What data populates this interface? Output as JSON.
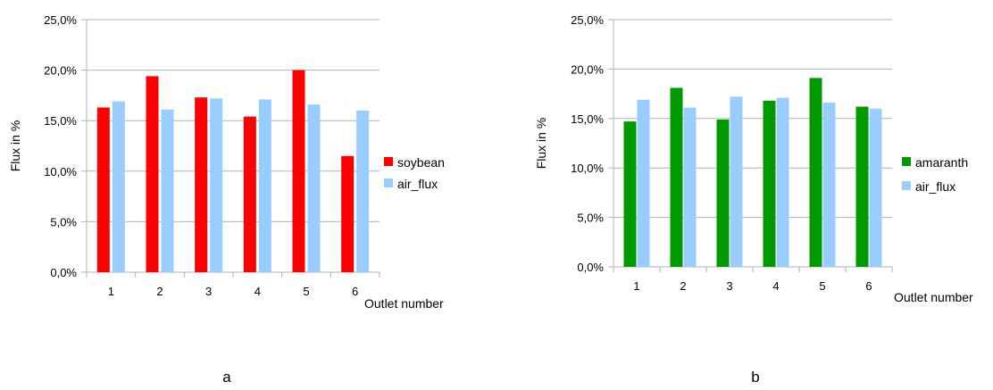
{
  "chart_data": [
    {
      "type": "bar",
      "panel_label": "a",
      "xlabel": "Outlet number",
      "ylabel": "Flux in %",
      "ylim": [
        0,
        25
      ],
      "yticks": [
        "0,0%",
        "5,0%",
        "10,0%",
        "15,0%",
        "20,0%",
        "25,0%"
      ],
      "categories": [
        "1",
        "2",
        "3",
        "4",
        "5",
        "6"
      ],
      "grid": "horizontal",
      "legend_position": "right",
      "series": [
        {
          "name": "soybean",
          "color": "#ff0000",
          "values": [
            16.3,
            19.4,
            17.3,
            15.4,
            20.0,
            11.5
          ]
        },
        {
          "name": "air_flux",
          "color": "#99ccff",
          "values": [
            16.9,
            16.1,
            17.2,
            17.1,
            16.6,
            16.0
          ]
        }
      ]
    },
    {
      "type": "bar",
      "panel_label": "b",
      "xlabel": "Outlet number",
      "ylabel": "Flux in %",
      "ylim": [
        0,
        25
      ],
      "yticks": [
        "0,0%",
        "5,0%",
        "10,0%",
        "15,0%",
        "20,0%",
        "25,0%"
      ],
      "categories": [
        "1",
        "2",
        "3",
        "4",
        "5",
        "6"
      ],
      "grid": "horizontal",
      "legend_position": "right",
      "series": [
        {
          "name": "amaranth",
          "color": "#009900",
          "values": [
            14.7,
            18.1,
            14.9,
            16.8,
            19.1,
            16.2
          ]
        },
        {
          "name": "air_flux",
          "color": "#99ccff",
          "values": [
            16.9,
            16.1,
            17.2,
            17.1,
            16.6,
            16.0
          ]
        }
      ]
    }
  ]
}
